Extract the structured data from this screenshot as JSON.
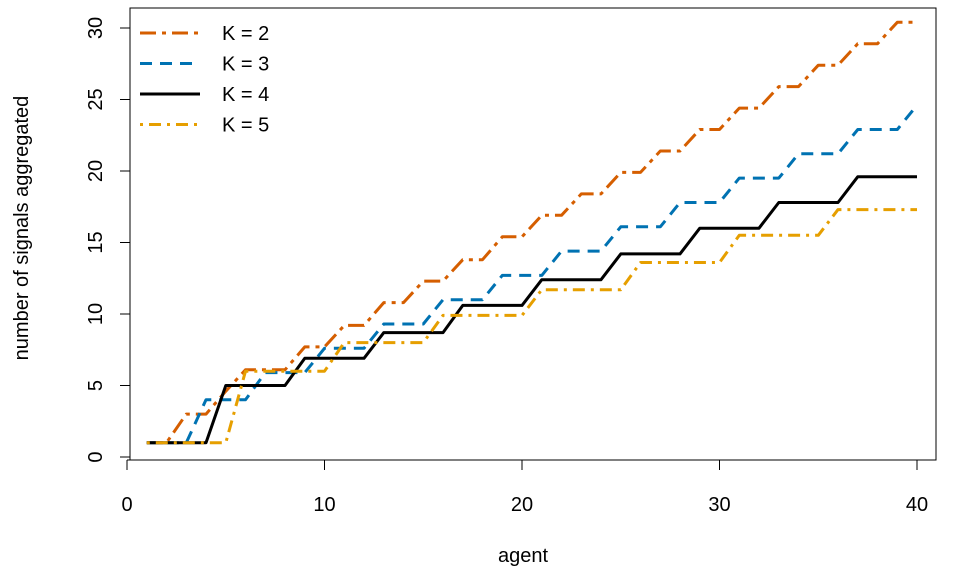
{
  "chart_data": {
    "type": "line",
    "title": "",
    "xlabel": "agent",
    "ylabel": "number of signals aggregated",
    "xlim": [
      0,
      40
    ],
    "ylim": [
      0,
      31
    ],
    "x_ticks": [
      0,
      10,
      20,
      30,
      40
    ],
    "y_ticks": [
      0,
      5,
      10,
      15,
      20,
      25,
      30
    ],
    "x_tick_labels": [
      "0",
      "10",
      "20",
      "30",
      "40"
    ],
    "y_tick_labels": [
      "0",
      "5",
      "10",
      "15",
      "20",
      "25",
      "30"
    ],
    "grid": false,
    "legend_position": "top-left",
    "series": [
      {
        "name": "K = 2",
        "color": "#d55e00",
        "dash": "long-dash-dot",
        "x": [
          1,
          2,
          3,
          4,
          5,
          6,
          7,
          8,
          9,
          10,
          11,
          12,
          13,
          14,
          15,
          16,
          17,
          18,
          19,
          20,
          21,
          22,
          23,
          24,
          25,
          26,
          27,
          28,
          29,
          30,
          31,
          32,
          33,
          34,
          35,
          36,
          37,
          38,
          39,
          40
        ],
        "values": [
          1,
          1,
          3,
          3,
          4.6,
          6.1,
          6.1,
          6.1,
          7.7,
          7.7,
          9.2,
          9.2,
          10.8,
          10.8,
          12.3,
          12.3,
          13.8,
          13.8,
          15.4,
          15.4,
          16.9,
          16.9,
          18.4,
          18.4,
          19.9,
          19.9,
          21.4,
          21.4,
          22.9,
          22.9,
          24.4,
          24.4,
          25.9,
          25.9,
          27.4,
          27.4,
          28.9,
          28.9,
          30.4,
          30.4
        ]
      },
      {
        "name": "K = 3",
        "color": "#0072b2",
        "dash": "dashed",
        "x": [
          1,
          2,
          3,
          4,
          5,
          6,
          7,
          8,
          9,
          10,
          11,
          12,
          13,
          14,
          15,
          16,
          17,
          18,
          19,
          20,
          21,
          22,
          23,
          24,
          25,
          26,
          27,
          28,
          29,
          30,
          31,
          32,
          33,
          34,
          35,
          36,
          37,
          38,
          39,
          40
        ],
        "values": [
          1,
          1,
          1,
          4,
          4,
          4,
          5.9,
          5.9,
          5.9,
          7.6,
          7.6,
          7.6,
          9.3,
          9.3,
          9.3,
          11,
          11,
          11,
          12.7,
          12.7,
          12.7,
          14.4,
          14.4,
          14.4,
          16.1,
          16.1,
          16.1,
          17.8,
          17.8,
          17.8,
          19.5,
          19.5,
          19.5,
          21.2,
          21.2,
          21.2,
          22.9,
          22.9,
          22.9,
          24.6
        ]
      },
      {
        "name": "K = 4",
        "color": "#000000",
        "dash": "solid",
        "x": [
          1,
          2,
          3,
          4,
          5,
          6,
          7,
          8,
          9,
          10,
          11,
          12,
          13,
          14,
          15,
          16,
          17,
          18,
          19,
          20,
          21,
          22,
          23,
          24,
          25,
          26,
          27,
          28,
          29,
          30,
          31,
          32,
          33,
          34,
          35,
          36,
          37,
          38,
          39,
          40
        ],
        "values": [
          1,
          1,
          1,
          1,
          5,
          5,
          5,
          5,
          6.9,
          6.9,
          6.9,
          6.9,
          8.7,
          8.7,
          8.7,
          8.7,
          10.6,
          10.6,
          10.6,
          10.6,
          12.4,
          12.4,
          12.4,
          12.4,
          14.2,
          14.2,
          14.2,
          14.2,
          16,
          16,
          16,
          16,
          17.8,
          17.8,
          17.8,
          17.8,
          19.6,
          19.6,
          19.6,
          19.6
        ]
      },
      {
        "name": "K = 5",
        "color": "#e69f00",
        "dash": "dot-dash",
        "x": [
          1,
          2,
          3,
          4,
          5,
          6,
          7,
          8,
          9,
          10,
          11,
          12,
          13,
          14,
          15,
          16,
          17,
          18,
          19,
          20,
          21,
          22,
          23,
          24,
          25,
          26,
          27,
          28,
          29,
          30,
          31,
          32,
          33,
          34,
          35,
          36,
          37,
          38,
          39,
          40
        ],
        "values": [
          1,
          1,
          1,
          1,
          1,
          6,
          6,
          6,
          6,
          6,
          8,
          8,
          8,
          8,
          8,
          9.9,
          9.9,
          9.9,
          9.9,
          9.9,
          11.7,
          11.7,
          11.7,
          11.7,
          11.7,
          13.6,
          13.6,
          13.6,
          13.6,
          13.6,
          15.5,
          15.5,
          15.5,
          15.5,
          15.5,
          17.3,
          17.3,
          17.3,
          17.3,
          17.3
        ]
      }
    ]
  }
}
